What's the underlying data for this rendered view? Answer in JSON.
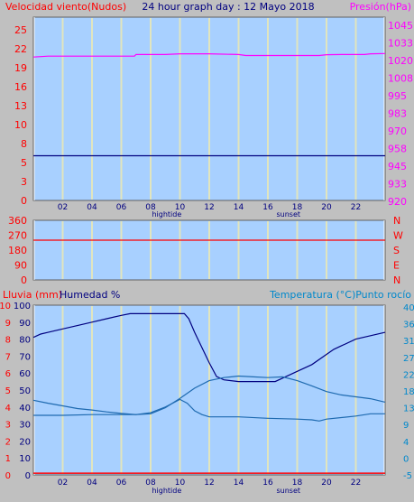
{
  "header": {
    "wind_label": "Velocidad viento(Nudos)",
    "title": "24 hour graph day : 12 Mayo 2018",
    "pressure_label": "Presión(hPa)"
  },
  "bottom_header": {
    "rain_label": "Lluvia (mm)",
    "humidity_label": "Humedad %",
    "temp_label": "Temperatura (°C)Punto rocío"
  },
  "markers": {
    "hightide": "hightide",
    "sunset": "sunset"
  },
  "colors": {
    "plot_bg": "#a8d0ff",
    "frame_bg": "#c0c0c0",
    "red": "#ff0000",
    "navy": "#000080",
    "magenta": "#ff00ff",
    "teal": "#1e6ab0",
    "cyan": "#0088cc",
    "grid": "#e8e8b8"
  },
  "chart_data": [
    {
      "type": "line",
      "name": "top",
      "x_ticks": [
        "02",
        "04",
        "06",
        "08",
        "10",
        "12",
        "14",
        "16",
        "18",
        "20",
        "22"
      ],
      "left_axis": {
        "label": "Velocidad viento(Nudos)",
        "ticks": [
          "25",
          "22",
          "19",
          "16",
          "13",
          "10",
          "8",
          "5",
          "3",
          "0"
        ],
        "ylim": [
          0,
          25
        ]
      },
      "right_axis": {
        "label": "Presión(hPa)",
        "ticks": [
          "1045",
          "1033",
          "1020",
          "1008",
          "995",
          "983",
          "970",
          "958",
          "945",
          "933",
          "920"
        ],
        "ylim": [
          920,
          1045
        ]
      },
      "series": [
        {
          "axis": "left",
          "color": "#000080",
          "points": [
            [
              0,
              6.1
            ],
            [
              24,
              6.1
            ]
          ]
        },
        {
          "axis": "right",
          "color": "#ff00ff",
          "points": [
            [
              0,
              1017.8
            ],
            [
              1,
              1018.4
            ],
            [
              3,
              1018.4
            ],
            [
              6.9,
              1018.4
            ],
            [
              7,
              1019.5
            ],
            [
              9,
              1019.5
            ],
            [
              10,
              1020.0
            ],
            [
              12,
              1020.0
            ],
            [
              14,
              1019.5
            ],
            [
              14.5,
              1018.8
            ],
            [
              15.5,
              1018.8
            ],
            [
              18,
              1018.8
            ],
            [
              19.5,
              1018.8
            ],
            [
              20,
              1019.4
            ],
            [
              21,
              1019.5
            ],
            [
              22.6,
              1019.5
            ],
            [
              23,
              1020.0
            ],
            [
              24,
              1020.2
            ]
          ]
        }
      ]
    },
    {
      "type": "line",
      "name": "wind-direction",
      "left_axis": {
        "ticks": [
          "360",
          "270",
          "180",
          "90",
          "0"
        ],
        "ylim": [
          0,
          360
        ]
      },
      "right_axis": {
        "ticks": [
          "N",
          "W",
          "S",
          "E",
          "N"
        ]
      },
      "series": [
        {
          "axis": "left",
          "color": "#ff0000",
          "points": [
            [
              0,
              240
            ],
            [
              24,
              240
            ]
          ]
        }
      ]
    },
    {
      "type": "line",
      "name": "bottom",
      "x_ticks": [
        "02",
        "04",
        "06",
        "08",
        "10",
        "12",
        "14",
        "16",
        "18",
        "20",
        "22"
      ],
      "rain_axis": {
        "label": "Lluvia (mm)",
        "ticks": [
          "10",
          "9",
          "8",
          "7",
          "6",
          "5",
          "4",
          "3",
          "2",
          "1",
          "0"
        ],
        "ylim": [
          0,
          10
        ]
      },
      "humidity_axis": {
        "label": "Humedad %",
        "ticks": [
          "100",
          "90",
          "80",
          "70",
          "60",
          "50",
          "40",
          "30",
          "20",
          "10",
          "0"
        ],
        "ylim": [
          0,
          100
        ]
      },
      "temp_axis": {
        "label": "Temperatura (°C)Punto rocío",
        "ticks": [
          "40",
          "36",
          "31",
          "27",
          "22",
          "18",
          "13",
          "9",
          "4",
          "0",
          "-5"
        ],
        "ylim": [
          -5,
          40
        ]
      },
      "series": [
        {
          "axis": "humidity",
          "color": "#000080",
          "points": [
            [
              0,
              81
            ],
            [
              0.5,
              83
            ],
            [
              1,
              84
            ],
            [
              2,
              86
            ],
            [
              3,
              88
            ],
            [
              4,
              90
            ],
            [
              5,
              92
            ],
            [
              6,
              94
            ],
            [
              6.6,
              95
            ],
            [
              8,
              95
            ],
            [
              9,
              95
            ],
            [
              10.3,
              95
            ],
            [
              10.6,
              92
            ],
            [
              11,
              84
            ],
            [
              11.5,
              75
            ],
            [
              12,
              66
            ],
            [
              12.5,
              58
            ],
            [
              13,
              56
            ],
            [
              14,
              55
            ],
            [
              15,
              55
            ],
            [
              16,
              55
            ],
            [
              16.5,
              55
            ],
            [
              17,
              57
            ],
            [
              18,
              61
            ],
            [
              19,
              65
            ],
            [
              20,
              71
            ],
            [
              20.5,
              74
            ],
            [
              21,
              76
            ],
            [
              22,
              80
            ],
            [
              23,
              82
            ],
            [
              24,
              84
            ]
          ]
        },
        {
          "axis": "temp",
          "color": "#1e6ab0",
          "points": [
            [
              0,
              10.8
            ],
            [
              2,
              10.8
            ],
            [
              4,
              11
            ],
            [
              6,
              11
            ],
            [
              7,
              11
            ],
            [
              8,
              11.5
            ],
            [
              9,
              13
            ],
            [
              10,
              15
            ],
            [
              10.5,
              14
            ],
            [
              11,
              12
            ],
            [
              11.5,
              11
            ],
            [
              12,
              10.4
            ],
            [
              14,
              10.4
            ],
            [
              16,
              10
            ],
            [
              18,
              9.8
            ],
            [
              19,
              9.6
            ],
            [
              19.5,
              9.3
            ],
            [
              20,
              9.8
            ],
            [
              22,
              10.6
            ],
            [
              23,
              11.2
            ],
            [
              24,
              11.2
            ]
          ]
        },
        {
          "axis": "temp",
          "color": "#1e6ab0",
          "points": [
            [
              0,
              14.8
            ],
            [
              1,
              14
            ],
            [
              2,
              13.3
            ],
            [
              3,
              12.6
            ],
            [
              4,
              12.2
            ],
            [
              5,
              11.7
            ],
            [
              6,
              11.3
            ],
            [
              7,
              11
            ],
            [
              8,
              11.2
            ],
            [
              9,
              12.8
            ],
            [
              10,
              15.3
            ],
            [
              11,
              18
            ],
            [
              12,
              20
            ],
            [
              13,
              20.8
            ],
            [
              14,
              21.2
            ],
            [
              15,
              21
            ],
            [
              16,
              20.8
            ],
            [
              17,
              21
            ],
            [
              18,
              20
            ],
            [
              19,
              18.6
            ],
            [
              20,
              17.1
            ],
            [
              21,
              16.2
            ],
            [
              22,
              15.7
            ],
            [
              23,
              15.2
            ],
            [
              24,
              14.3
            ]
          ]
        },
        {
          "axis": "rain",
          "color": "#ff0000",
          "points": [
            [
              0,
              0.1
            ],
            [
              24,
              0.1
            ]
          ]
        }
      ]
    }
  ]
}
